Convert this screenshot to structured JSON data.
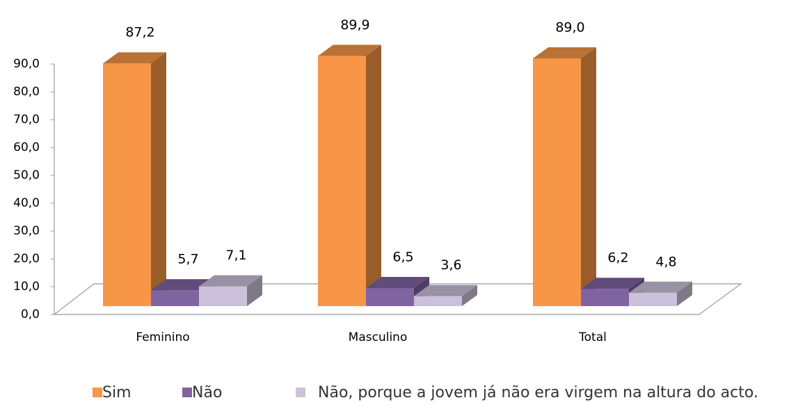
{
  "chart_data": {
    "type": "bar3d",
    "categories": [
      "Feminino",
      "Masculino",
      "Total"
    ],
    "series": [
      {
        "name": "Sim",
        "color": "#f79646",
        "values": [
          87.2,
          89.9,
          89.0
        ],
        "value_labels": [
          "87,2",
          "89,9",
          "89,0"
        ]
      },
      {
        "name": "Não",
        "color": "#8064a2",
        "values": [
          5.7,
          6.5,
          6.2
        ],
        "value_labels": [
          "5,7",
          "6,5",
          "6,2"
        ]
      },
      {
        "name": "Não, porque a jovem já não era virgem na altura do acto.",
        "color": "#ccc1da",
        "values": [
          7.1,
          3.6,
          4.8
        ],
        "value_labels": [
          "7,1",
          "3,6",
          "4,8"
        ]
      }
    ],
    "ylim": [
      0,
      90
    ],
    "yticks": [
      {
        "value": 0,
        "label": "0,0"
      },
      {
        "value": 10,
        "label": "10,0"
      },
      {
        "value": 20,
        "label": "20,0"
      },
      {
        "value": 30,
        "label": "30,0"
      },
      {
        "value": 40,
        "label": "40,0"
      },
      {
        "value": 50,
        "label": "50,0"
      },
      {
        "value": 60,
        "label": "60,0"
      },
      {
        "value": 70,
        "label": "70,0"
      },
      {
        "value": 80,
        "label": "80,0"
      },
      {
        "value": 90,
        "label": "90,0"
      }
    ],
    "grid": false,
    "legend": "bottom"
  }
}
